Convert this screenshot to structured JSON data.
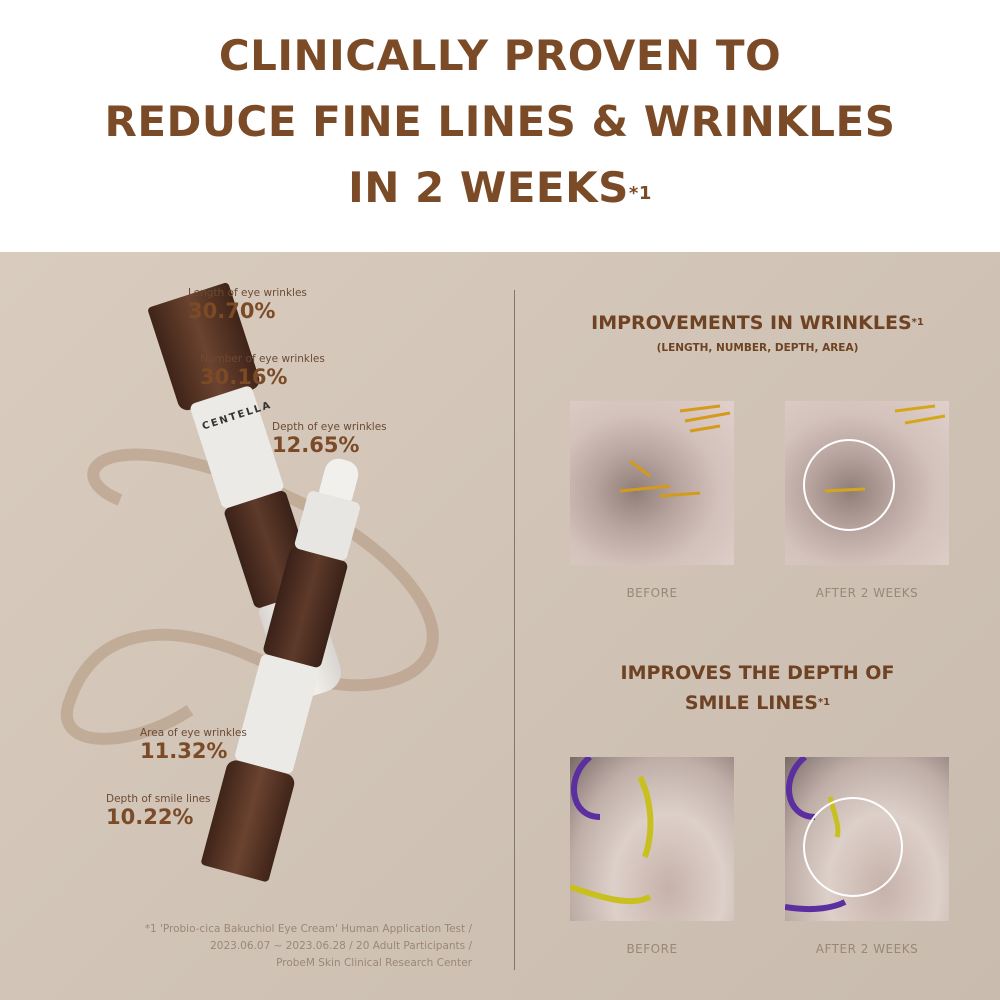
{
  "headline": {
    "line1": "CLINICALLY PROVEN TO",
    "line2": "REDUCE FINE LINES & WRINKLES",
    "line3": "IN 2 WEEKS",
    "mark": "*1"
  },
  "stats": [
    {
      "label": "Length of eye wrinkles",
      "value": "30.70%"
    },
    {
      "label": "Number of eye wrinkles",
      "value": "30.16%"
    },
    {
      "label": "Depth of eye wrinkles",
      "value": "12.65%"
    },
    {
      "label": "Area of eye wrinkles",
      "value": "11.32%"
    },
    {
      "label": "Depth of smile lines",
      "value": "10.22%"
    }
  ],
  "product": {
    "brand": "CENTELLA"
  },
  "footnote": {
    "line1": "*1 'Probio-cica Bakuchiol Eye Cream' Human Application Test /",
    "line2": "2023.06.07 ~ 2023.06.28 / 20 Adult Participants /",
    "line3": "ProbeM Skin Clinical Research Center"
  },
  "section1": {
    "title": "IMPROVEMENTS IN WRINKLES",
    "mark": "*1",
    "subtitle": "(LENGTH, NUMBER, DEPTH, AREA)",
    "before": "BEFORE",
    "after": "AFTER 2 WEEKS"
  },
  "section2": {
    "title_line1": "IMPROVES THE DEPTH OF",
    "title_line2": "SMILE LINES",
    "mark": "*1",
    "before": "BEFORE",
    "after": "AFTER 2 WEEKS"
  },
  "colors": {
    "headline": "#7b4a26",
    "panel": "#d6c9bb",
    "tube": "#4a2c1f"
  }
}
